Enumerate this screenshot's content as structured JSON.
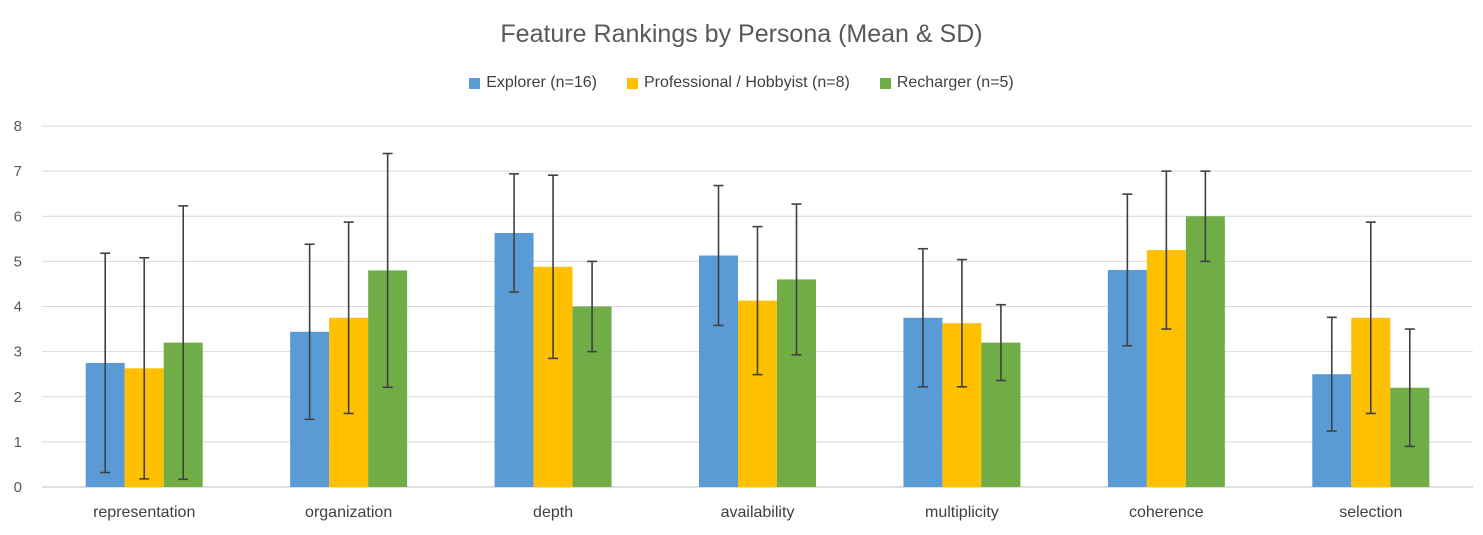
{
  "chart_data": {
    "type": "bar",
    "title": "Feature Rankings by Persona (Mean & SD)",
    "xlabel": "",
    "ylabel": "",
    "ylim": [
      0,
      8
    ],
    "yticks": [
      0,
      1,
      2,
      3,
      4,
      5,
      6,
      7,
      8
    ],
    "grid": true,
    "legend_position": "top-center",
    "categories": [
      "representation",
      "organization",
      "depth",
      "availability",
      "multiplicity",
      "coherence",
      "selection"
    ],
    "series": [
      {
        "name": "Explorer (n=16)",
        "color": "#5b9bd5",
        "values": [
          2.75,
          3.44,
          5.63,
          5.13,
          3.75,
          4.81,
          2.5
        ],
        "sd": [
          2.43,
          1.94,
          1.31,
          1.55,
          1.53,
          1.68,
          1.26
        ]
      },
      {
        "name": "Professional / Hobbyist (n=8)",
        "color": "#ffc000",
        "values": [
          2.63,
          3.75,
          4.88,
          4.13,
          3.63,
          5.25,
          3.75
        ],
        "sd": [
          2.45,
          2.12,
          2.03,
          1.64,
          1.41,
          1.75,
          2.12
        ]
      },
      {
        "name": "Recharger (n=5)",
        "color": "#70ad47",
        "values": [
          3.2,
          4.8,
          4.0,
          4.6,
          3.2,
          6.0,
          2.2
        ],
        "sd": [
          3.03,
          2.59,
          1.0,
          1.67,
          0.84,
          1.0,
          1.3
        ]
      }
    ]
  }
}
